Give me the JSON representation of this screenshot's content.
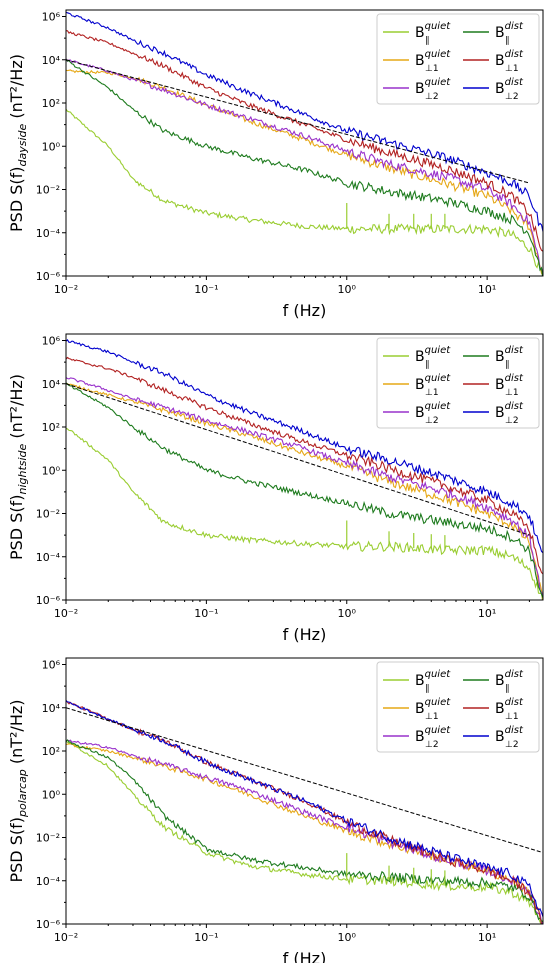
{
  "chart_data": [
    {
      "type": "line",
      "ylabel": "PSD S(f)",
      "ylabel_sub": "dayside",
      "ylabel_unit": "(nT²/Hz)",
      "xlabel": "f (Hz)",
      "x_scale": "log",
      "y_scale": "log",
      "xlim": [
        0.01,
        25
      ],
      "ylim": [
        1e-06,
        2000000.0
      ],
      "x_ticks": [
        "10⁻²",
        "10⁻¹",
        "10⁰",
        "10¹"
      ],
      "y_ticks": [
        "10⁻⁶",
        "10⁻⁴",
        "10⁻²",
        "10⁰",
        "10²",
        "10⁴",
        "10⁶"
      ],
      "legend_position": "top-right",
      "series": [
        {
          "name": "B∥ quiet",
          "color": "#9acd32",
          "f": [
            0.01,
            0.02,
            0.03,
            0.05,
            0.1,
            0.2,
            0.5,
            1,
            2,
            5,
            10,
            15,
            20,
            25
          ],
          "psd": [
            50,
            1,
            0.03,
            0.003,
            0.0008,
            0.0004,
            0.0002,
            0.00015,
            0.00015,
            0.00015,
            0.00015,
            8e-05,
            2e-05,
            1e-06
          ]
        },
        {
          "name": "B⊥₁ quiet",
          "color": "#e6a817",
          "f": [
            0.01,
            0.02,
            0.03,
            0.05,
            0.1,
            0.2,
            0.5,
            1,
            2,
            5,
            10,
            15,
            20,
            25
          ],
          "psd": [
            3000,
            2500,
            1500,
            500,
            80,
            15,
            2,
            0.4,
            0.1,
            0.02,
            0.005,
            0.001,
            0.0002,
            1e-06
          ]
        },
        {
          "name": "B⊥₂ quiet",
          "color": "#9932cc",
          "f": [
            0.01,
            0.02,
            0.03,
            0.05,
            0.1,
            0.2,
            0.5,
            1,
            2,
            5,
            10,
            15,
            20,
            25
          ],
          "psd": [
            10000,
            3000,
            1200,
            400,
            80,
            20,
            3,
            0.6,
            0.15,
            0.04,
            0.01,
            0.002,
            0.0003,
            1e-06
          ]
        },
        {
          "name": "B∥ dist",
          "color": "#1e7b1e",
          "f": [
            0.01,
            0.02,
            0.03,
            0.05,
            0.1,
            0.2,
            0.5,
            1,
            2,
            5,
            10,
            15,
            20,
            25
          ],
          "psd": [
            10000,
            500,
            50,
            5,
            1,
            0.3,
            0.08,
            0.02,
            0.008,
            0.003,
            0.001,
            0.0004,
            0.0001,
            1e-06
          ]
        },
        {
          "name": "B⊥₁ dist",
          "color": "#b22222",
          "f": [
            0.01,
            0.02,
            0.03,
            0.05,
            0.1,
            0.2,
            0.5,
            1,
            2,
            5,
            10,
            15,
            20,
            25
          ],
          "psd": [
            200000,
            60000,
            20000,
            5000,
            500,
            80,
            10,
            2,
            0.5,
            0.1,
            0.02,
            0.005,
            0.0008,
            1e-05
          ]
        },
        {
          "name": "B⊥₂ dist",
          "color": "#0000cd",
          "f": [
            0.01,
            0.02,
            0.03,
            0.05,
            0.1,
            0.2,
            0.5,
            1,
            2,
            5,
            10,
            15,
            20,
            25
          ],
          "psd": [
            1500000,
            300000,
            80000,
            20000,
            2000,
            300,
            30,
            5,
            1.5,
            0.3,
            0.06,
            0.02,
            0.005,
            0.0001
          ]
        }
      ],
      "reference_line": {
        "f": [
          0.01,
          20
        ],
        "psd": [
          10000,
          0.02
        ]
      }
    },
    {
      "type": "line",
      "ylabel": "PSD S(f)",
      "ylabel_sub": "nightside",
      "ylabel_unit": "(nT²/Hz)",
      "xlabel": "f (Hz)",
      "x_scale": "log",
      "y_scale": "log",
      "xlim": [
        0.01,
        25
      ],
      "ylim": [
        1e-06,
        2000000.0
      ],
      "x_ticks": [
        "10⁻²",
        "10⁻¹",
        "10⁰",
        "10¹"
      ],
      "y_ticks": [
        "10⁻⁶",
        "10⁻⁴",
        "10⁻²",
        "10⁰",
        "10²",
        "10⁴",
        "10⁶"
      ],
      "legend_position": "top-right",
      "series": [
        {
          "name": "B∥ quiet",
          "color": "#9acd32",
          "f": [
            0.01,
            0.02,
            0.03,
            0.05,
            0.1,
            0.2,
            0.5,
            1,
            2,
            5,
            10,
            15,
            20,
            25
          ],
          "psd": [
            100,
            3,
            0.1,
            0.004,
            0.001,
            0.0006,
            0.0004,
            0.0003,
            0.0003,
            0.0002,
            0.0002,
            0.0001,
            3e-05,
            1e-06
          ]
        },
        {
          "name": "B⊥₁ quiet",
          "color": "#e6a817",
          "f": [
            0.01,
            0.02,
            0.03,
            0.05,
            0.1,
            0.2,
            0.5,
            1,
            2,
            5,
            10,
            15,
            20,
            25
          ],
          "psd": [
            10000,
            3000,
            1500,
            600,
            150,
            40,
            6,
            1.5,
            0.3,
            0.05,
            0.01,
            0.003,
            0.0005,
            1e-06
          ]
        },
        {
          "name": "B⊥₂ quiet",
          "color": "#9932cc",
          "f": [
            0.01,
            0.02,
            0.03,
            0.05,
            0.1,
            0.2,
            0.5,
            1,
            2,
            5,
            10,
            15,
            20,
            25
          ],
          "psd": [
            20000,
            5000,
            2000,
            800,
            200,
            60,
            10,
            2,
            0.5,
            0.1,
            0.02,
            0.005,
            0.0008,
            1e-06
          ]
        },
        {
          "name": "B∥ dist",
          "color": "#1e7b1e",
          "f": [
            0.01,
            0.02,
            0.03,
            0.05,
            0.1,
            0.2,
            0.5,
            1,
            2,
            5,
            10,
            15,
            20,
            25
          ],
          "psd": [
            10000,
            800,
            100,
            10,
            1,
            0.3,
            0.08,
            0.03,
            0.01,
            0.004,
            0.002,
            0.0008,
            0.0002,
            1e-06
          ]
        },
        {
          "name": "B⊥₁ dist",
          "color": "#b22222",
          "f": [
            0.01,
            0.02,
            0.03,
            0.05,
            0.1,
            0.2,
            0.5,
            1,
            2,
            5,
            10,
            15,
            20,
            25
          ],
          "psd": [
            150000,
            50000,
            20000,
            5000,
            800,
            150,
            20,
            5,
            1.2,
            0.2,
            0.04,
            0.01,
            0.002,
            1e-05
          ]
        },
        {
          "name": "B⊥₂ dist",
          "color": "#0000cd",
          "f": [
            0.01,
            0.02,
            0.03,
            0.05,
            0.1,
            0.2,
            0.5,
            1,
            2,
            5,
            10,
            15,
            20,
            25
          ],
          "psd": [
            1000000,
            300000,
            100000,
            30000,
            3000,
            500,
            60,
            10,
            3,
            0.5,
            0.1,
            0.03,
            0.008,
            0.0001
          ]
        }
      ],
      "reference_line": {
        "f": [
          0.01,
          20
        ],
        "psd": [
          10000,
          0.001
        ]
      }
    },
    {
      "type": "line",
      "ylabel": "PSD S(f)",
      "ylabel_sub": "polarcap",
      "ylabel_unit": "(nT²/Hz)",
      "xlabel": "f (Hz)",
      "x_scale": "log",
      "y_scale": "log",
      "xlim": [
        0.01,
        25
      ],
      "ylim": [
        1e-06,
        2000000.0
      ],
      "x_ticks": [
        "10⁻²",
        "10⁻¹",
        "10⁰",
        "10¹"
      ],
      "y_ticks": [
        "10⁻⁶",
        "10⁻⁴",
        "10⁻²",
        "10⁰",
        "10²",
        "10⁴",
        "10⁶"
      ],
      "legend_position": "top-right",
      "series": [
        {
          "name": "B∥ quiet",
          "color": "#9acd32",
          "f": [
            0.01,
            0.02,
            0.03,
            0.05,
            0.1,
            0.2,
            0.5,
            1,
            2,
            5,
            10,
            15,
            20,
            25
          ],
          "psd": [
            300,
            20,
            1,
            0.03,
            0.002,
            0.0005,
            0.0002,
            0.00012,
            0.0001,
            6e-05,
            5e-05,
            3e-05,
            1e-05,
            1e-06
          ]
        },
        {
          "name": "B⊥₁ quiet",
          "color": "#e6a817",
          "f": [
            0.01,
            0.02,
            0.03,
            0.05,
            0.1,
            0.2,
            0.5,
            1,
            2,
            5,
            10,
            15,
            20,
            25
          ],
          "psd": [
            200,
            100,
            50,
            20,
            5,
            1,
            0.1,
            0.02,
            0.005,
            0.001,
            0.0003,
            0.0001,
            3e-05,
            1e-06
          ]
        },
        {
          "name": "B⊥₂ quiet",
          "color": "#9932cc",
          "f": [
            0.01,
            0.02,
            0.03,
            0.05,
            0.1,
            0.2,
            0.5,
            1,
            2,
            5,
            10,
            15,
            20,
            25
          ],
          "psd": [
            300,
            150,
            60,
            25,
            6,
            1.5,
            0.15,
            0.03,
            0.006,
            0.001,
            0.0003,
            0.0001,
            3e-05,
            1e-06
          ]
        },
        {
          "name": "B∥ dist",
          "color": "#1e7b1e",
          "f": [
            0.01,
            0.02,
            0.03,
            0.05,
            0.1,
            0.2,
            0.5,
            1,
            2,
            5,
            10,
            15,
            20,
            25
          ],
          "psd": [
            300,
            50,
            5,
            0.1,
            0.003,
            0.001,
            0.0004,
            0.0002,
            0.00015,
            0.0001,
            8e-05,
            5e-05,
            2e-05,
            1e-06
          ]
        },
        {
          "name": "B⊥₁ dist",
          "color": "#b22222",
          "f": [
            0.01,
            0.02,
            0.03,
            0.05,
            0.1,
            0.2,
            0.5,
            1,
            2,
            5,
            10,
            15,
            20,
            25
          ],
          "psd": [
            20000,
            3000,
            1000,
            300,
            30,
            5,
            0.5,
            0.05,
            0.008,
            0.001,
            0.0003,
            0.0001,
            3e-05,
            1e-06
          ]
        },
        {
          "name": "B⊥₂ dist",
          "color": "#0000cd",
          "f": [
            0.01,
            0.02,
            0.03,
            0.05,
            0.1,
            0.2,
            0.5,
            1,
            2,
            5,
            10,
            15,
            20,
            25
          ],
          "psd": [
            20000,
            3000,
            1000,
            300,
            30,
            5,
            0.5,
            0.06,
            0.01,
            0.0015,
            0.0004,
            0.0002,
            5e-05,
            2e-06
          ]
        }
      ],
      "reference_line": {
        "f": [
          0.01,
          25
        ],
        "psd": [
          10000,
          0.002
        ]
      }
    }
  ],
  "legend": {
    "B": "B",
    "par_sub": "∥",
    "perp1_sub": "⊥1",
    "perp2_sub": "⊥2",
    "quiet": "quiet",
    "dist": "dist"
  }
}
